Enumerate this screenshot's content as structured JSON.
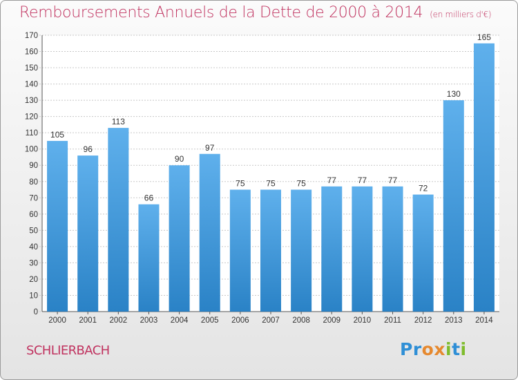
{
  "header": {
    "title": "Remboursements Annuels de la Dette de 2000 à 2014",
    "unit": "(en milliers d'€)"
  },
  "footer": {
    "commune": "SCHLIERBACH",
    "brand_parts": [
      "Pr",
      "o",
      "x",
      "i",
      "t",
      "i"
    ]
  },
  "colors": {
    "title": "#c0325f",
    "bar_light": "#5fb0ec",
    "bar_dark": "#2a82c6"
  },
  "chart_data": {
    "type": "bar",
    "title": "Remboursements Annuels de la Dette de 2000 à 2014",
    "subtitle": "(en milliers d'€)",
    "categories": [
      "2000",
      "2001",
      "2002",
      "2003",
      "2004",
      "2005",
      "2006",
      "2007",
      "2008",
      "2009",
      "2010",
      "2011",
      "2012",
      "2013",
      "2014"
    ],
    "values": [
      105,
      96,
      113,
      66,
      90,
      97,
      75,
      75,
      75,
      77,
      77,
      77,
      72,
      130,
      165
    ],
    "ylim": [
      0,
      170
    ],
    "yticks": [
      0,
      10,
      20,
      30,
      40,
      50,
      60,
      70,
      80,
      90,
      100,
      110,
      120,
      130,
      140,
      150,
      160,
      170
    ],
    "grid": true,
    "xlabel": "",
    "ylabel": ""
  }
}
